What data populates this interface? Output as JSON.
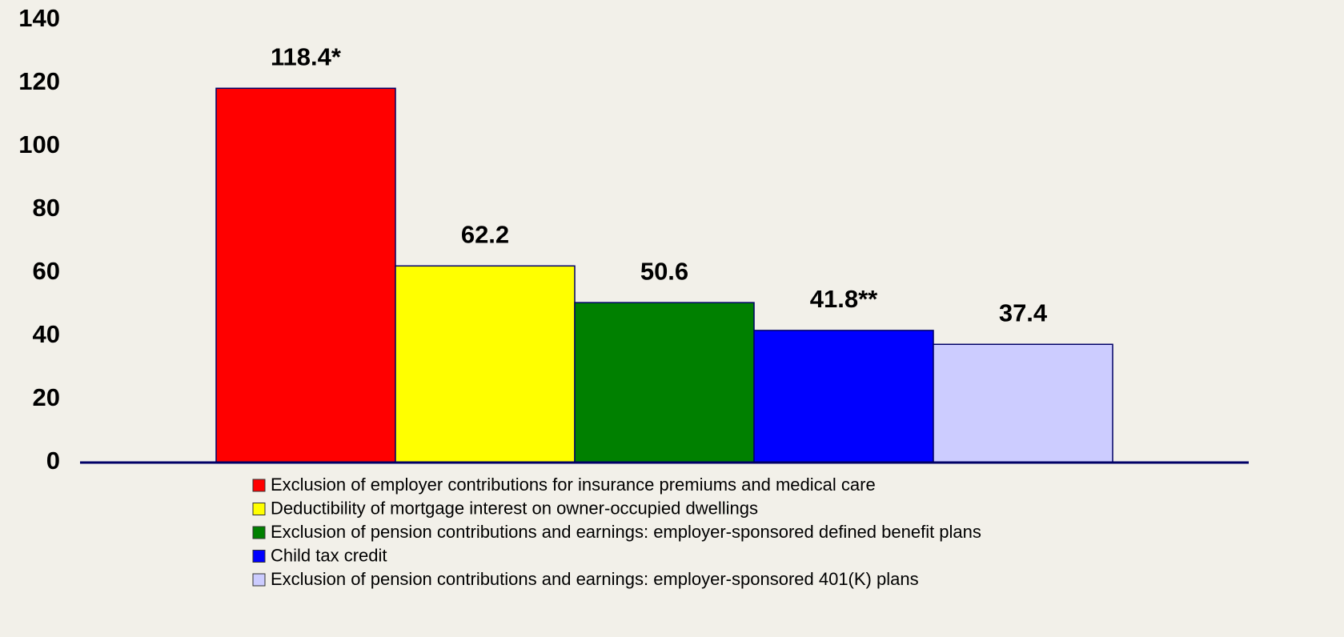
{
  "chart_data": {
    "type": "bar",
    "categories": [
      "Exclusion of employer contributions for insurance premiums and medical care",
      "Deductibility of mortgage interest on owner-occupied dwellings",
      "Exclusion of pension contributions and earnings: employer-sponsored defined benefit plans",
      "Child tax credit",
      "Exclusion of pension contributions and earnings: employer-sponsored 401(K) plans"
    ],
    "values": [
      118.4,
      62.2,
      50.6,
      41.8,
      37.4
    ],
    "value_labels": [
      "118.4*",
      "62.2",
      "50.6",
      "41.8**",
      "37.4"
    ],
    "colors": [
      "#ff0000",
      "#ffff00",
      "#008000",
      "#0000ff",
      "#ccccff"
    ],
    "ylim": [
      0,
      140
    ],
    "yticks": [
      0,
      20,
      40,
      60,
      80,
      100,
      120,
      140
    ],
    "grid": false
  }
}
